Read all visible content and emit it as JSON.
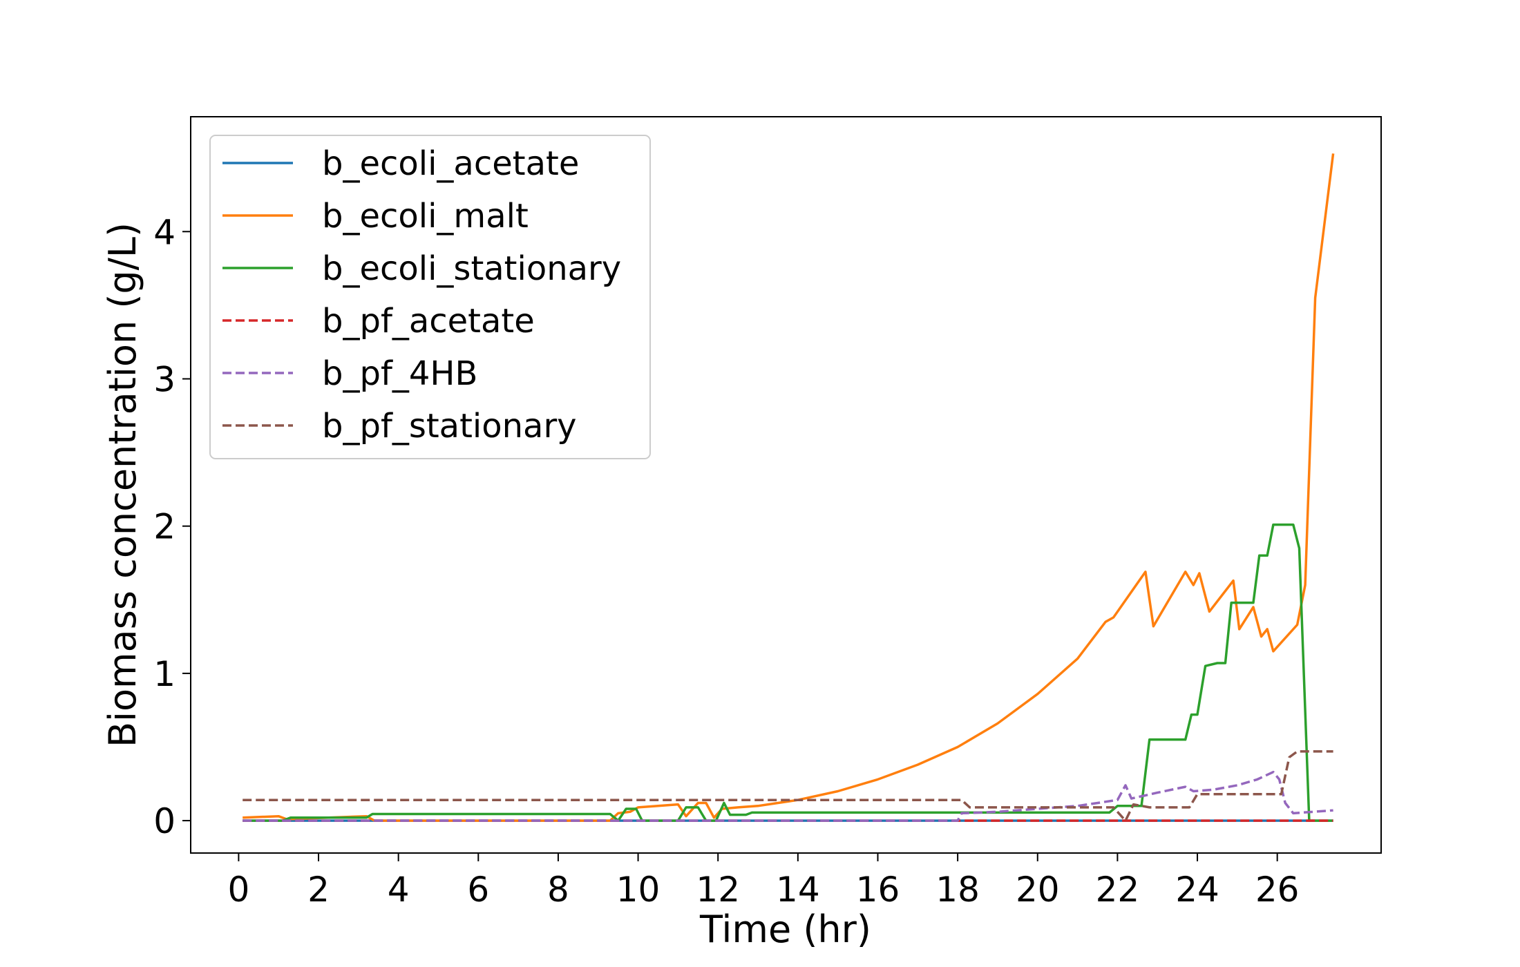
{
  "chart_data": {
    "type": "line",
    "xlabel": "Time (hr)",
    "ylabel": "Biomass concentration (g/L)",
    "xlim": [
      -1.2,
      28.6
    ],
    "ylim": [
      -0.22,
      4.78
    ],
    "xticks": [
      0,
      2,
      4,
      6,
      8,
      10,
      12,
      14,
      16,
      18,
      20,
      22,
      24,
      26
    ],
    "yticks": [
      0,
      1,
      2,
      3,
      4
    ],
    "grid": false,
    "legend_position": "top-left",
    "series": [
      {
        "name": "b_ecoli_acetate",
        "color": "#1f77b4",
        "dash": "solid",
        "points": [
          [
            0.1,
            0.0
          ],
          [
            27.4,
            0.0
          ]
        ]
      },
      {
        "name": "b_ecoli_malt",
        "color": "#ff7f0e",
        "dash": "solid",
        "points": [
          [
            0.1,
            0.02
          ],
          [
            1.0,
            0.03
          ],
          [
            1.2,
            0.01
          ],
          [
            3.2,
            0.03
          ],
          [
            3.4,
            0.0
          ],
          [
            9.3,
            0.0
          ],
          [
            9.5,
            0.05
          ],
          [
            9.8,
            0.06
          ],
          [
            10.0,
            0.09
          ],
          [
            11.0,
            0.11
          ],
          [
            11.2,
            0.03
          ],
          [
            11.5,
            0.12
          ],
          [
            11.7,
            0.12
          ],
          [
            11.9,
            0.02
          ],
          [
            12.1,
            0.08
          ],
          [
            12.5,
            0.09
          ],
          [
            13.0,
            0.1
          ],
          [
            14.0,
            0.14
          ],
          [
            15.0,
            0.2
          ],
          [
            16.0,
            0.28
          ],
          [
            17.0,
            0.38
          ],
          [
            18.0,
            0.5
          ],
          [
            19.0,
            0.66
          ],
          [
            20.0,
            0.86
          ],
          [
            21.0,
            1.1
          ],
          [
            21.7,
            1.35
          ],
          [
            21.9,
            1.38
          ],
          [
            22.7,
            1.69
          ],
          [
            22.9,
            1.32
          ],
          [
            23.7,
            1.69
          ],
          [
            23.9,
            1.6
          ],
          [
            24.05,
            1.68
          ],
          [
            24.3,
            1.42
          ],
          [
            24.9,
            1.63
          ],
          [
            25.05,
            1.3
          ],
          [
            25.4,
            1.45
          ],
          [
            25.6,
            1.25
          ],
          [
            25.75,
            1.3
          ],
          [
            25.9,
            1.15
          ],
          [
            26.5,
            1.33
          ],
          [
            26.7,
            1.6
          ],
          [
            26.95,
            3.55
          ],
          [
            27.4,
            4.53
          ]
        ]
      },
      {
        "name": "b_ecoli_stationary",
        "color": "#2ca02c",
        "dash": "solid",
        "points": [
          [
            0.1,
            0.0
          ],
          [
            1.1,
            0.0
          ],
          [
            1.3,
            0.02
          ],
          [
            3.2,
            0.02
          ],
          [
            3.35,
            0.045
          ],
          [
            9.3,
            0.045
          ],
          [
            9.5,
            0.0
          ],
          [
            9.7,
            0.08
          ],
          [
            9.95,
            0.08
          ],
          [
            10.1,
            0.0
          ],
          [
            11.0,
            0.0
          ],
          [
            11.2,
            0.09
          ],
          [
            11.5,
            0.09
          ],
          [
            11.7,
            0.0
          ],
          [
            11.95,
            0.0
          ],
          [
            12.15,
            0.12
          ],
          [
            12.3,
            0.04
          ],
          [
            12.7,
            0.04
          ],
          [
            12.85,
            0.055
          ],
          [
            21.8,
            0.055
          ],
          [
            22.0,
            0.1
          ],
          [
            22.6,
            0.1
          ],
          [
            22.8,
            0.55
          ],
          [
            23.7,
            0.55
          ],
          [
            23.85,
            0.72
          ],
          [
            24.0,
            0.72
          ],
          [
            24.2,
            1.05
          ],
          [
            24.5,
            1.07
          ],
          [
            24.7,
            1.07
          ],
          [
            24.85,
            1.48
          ],
          [
            25.4,
            1.48
          ],
          [
            25.55,
            1.8
          ],
          [
            25.75,
            1.8
          ],
          [
            25.9,
            2.01
          ],
          [
            26.4,
            2.01
          ],
          [
            26.55,
            1.85
          ],
          [
            26.8,
            0.0
          ],
          [
            27.4,
            0.0
          ]
        ]
      },
      {
        "name": "b_pf_acetate",
        "color": "#d62728",
        "dash": "dashed",
        "points": [
          [
            0.1,
            0.0
          ],
          [
            27.4,
            0.0
          ]
        ]
      },
      {
        "name": "b_pf_4HB",
        "color": "#9467bd",
        "dash": "dashed",
        "points": [
          [
            0.1,
            0.0
          ],
          [
            18.0,
            0.0
          ],
          [
            18.1,
            0.05
          ],
          [
            19.0,
            0.06
          ],
          [
            20.0,
            0.08
          ],
          [
            21.0,
            0.1
          ],
          [
            22.0,
            0.14
          ],
          [
            22.2,
            0.24
          ],
          [
            22.35,
            0.15
          ],
          [
            23.0,
            0.19
          ],
          [
            23.7,
            0.23
          ],
          [
            23.9,
            0.2
          ],
          [
            24.4,
            0.21
          ],
          [
            25.0,
            0.24
          ],
          [
            25.5,
            0.28
          ],
          [
            25.9,
            0.33
          ],
          [
            26.05,
            0.28
          ],
          [
            26.2,
            0.12
          ],
          [
            26.4,
            0.05
          ],
          [
            27.4,
            0.07
          ]
        ]
      },
      {
        "name": "b_pf_stationary",
        "color": "#8c564b",
        "dash": "dashed",
        "points": [
          [
            0.1,
            0.14
          ],
          [
            18.1,
            0.14
          ],
          [
            18.3,
            0.09
          ],
          [
            21.9,
            0.09
          ],
          [
            22.2,
            0.0
          ],
          [
            22.4,
            0.11
          ],
          [
            22.8,
            0.09
          ],
          [
            23.8,
            0.09
          ],
          [
            24.0,
            0.18
          ],
          [
            26.1,
            0.18
          ],
          [
            26.3,
            0.43
          ],
          [
            26.5,
            0.47
          ],
          [
            27.4,
            0.47
          ]
        ]
      }
    ]
  }
}
